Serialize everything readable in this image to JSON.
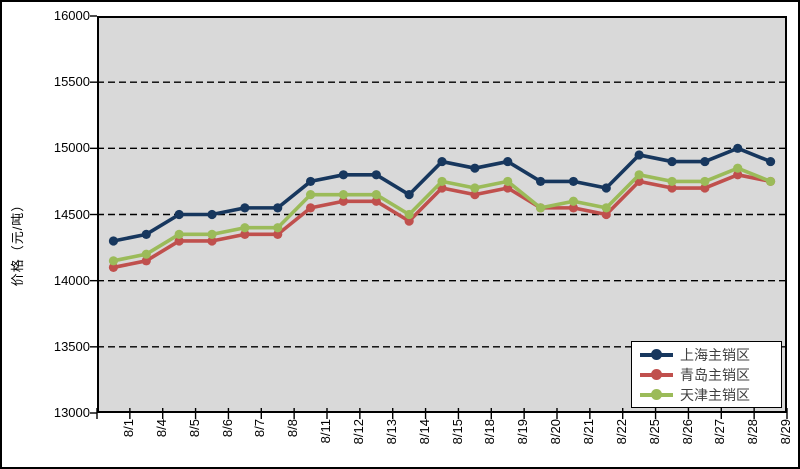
{
  "chart_data": {
    "type": "line",
    "title": "",
    "xlabel": "",
    "ylabel": "价格（元/吨）",
    "ylim": [
      13000,
      16000
    ],
    "yticks": [
      16000,
      15500,
      15000,
      14500,
      14000,
      13500,
      13000
    ],
    "grid": "horizontal-dashed",
    "legend_position": "bottom-right",
    "plot_background": "#D9D9D9",
    "categories": [
      "8/1",
      "8/4",
      "8/5",
      "8/6",
      "8/7",
      "8/8",
      "8/11",
      "8/12",
      "8/13",
      "8/14",
      "8/15",
      "8/18",
      "8/19",
      "8/20",
      "8/21",
      "8/22",
      "8/25",
      "8/26",
      "8/27",
      "8/28",
      "8/29"
    ],
    "series": [
      {
        "name": "上海主销区",
        "color": "#17375E",
        "values": [
          14300,
          14350,
          14500,
          14500,
          14550,
          14550,
          14750,
          14800,
          14800,
          14650,
          14900,
          14850,
          14900,
          14750,
          14750,
          14700,
          14950,
          14900,
          14900,
          15000,
          14900
        ]
      },
      {
        "name": "青岛主销区",
        "color": "#C0504D",
        "values": [
          14100,
          14150,
          14300,
          14300,
          14350,
          14350,
          14550,
          14600,
          14600,
          14450,
          14700,
          14650,
          14700,
          14550,
          14550,
          14500,
          14750,
          14700,
          14700,
          14800,
          14750
        ]
      },
      {
        "name": "天津主销区",
        "color": "#9BBB59",
        "values": [
          14150,
          14200,
          14350,
          14350,
          14400,
          14400,
          14650,
          14650,
          14650,
          14500,
          14750,
          14700,
          14750,
          14550,
          14600,
          14550,
          14800,
          14750,
          14750,
          14850,
          14750
        ]
      }
    ]
  }
}
